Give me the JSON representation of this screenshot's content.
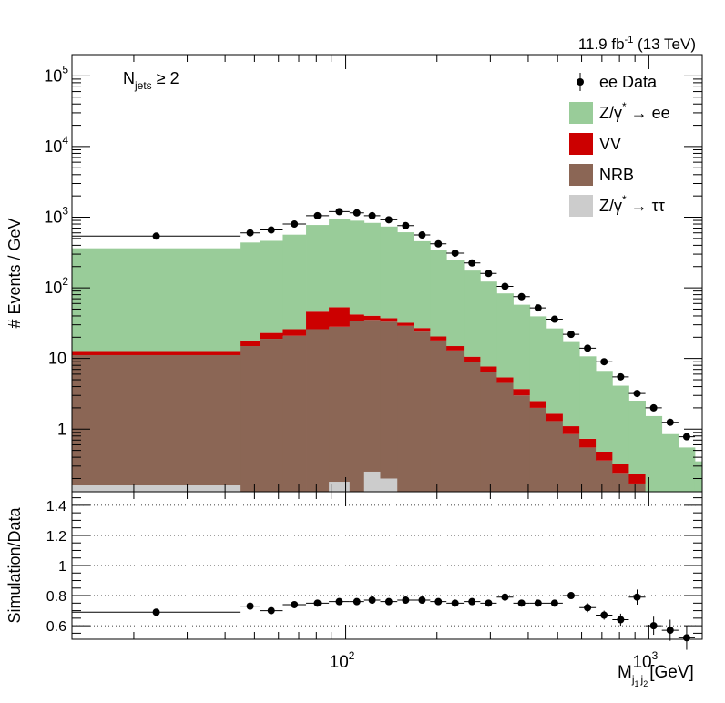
{
  "header": {
    "lumi_text": "11.9 fb",
    "lumi_exp": "-1",
    "energy_text": " (13 TeV)"
  },
  "annotation": {
    "label": "N",
    "sub": "jets",
    "rel": " ≥ 2"
  },
  "colors": {
    "zee": "#99cc99",
    "vv": "#cc0000",
    "nrb": "#8b6655",
    "ztt": "#cccccc",
    "data": "#000000"
  },
  "top_panel": {
    "ylabel": "# Events / GeV",
    "xlim": [
      12.5,
      1500
    ],
    "ylim": [
      0.13,
      200000
    ],
    "yticks": [
      {
        "v": 1,
        "label": "1"
      },
      {
        "v": 10,
        "label": "10"
      },
      {
        "v": 100,
        "base": "10",
        "exp": "2"
      },
      {
        "v": 1000,
        "base": "10",
        "exp": "3"
      },
      {
        "v": 10000,
        "base": "10",
        "exp": "4"
      },
      {
        "v": 100000,
        "base": "10",
        "exp": "5"
      }
    ]
  },
  "legend": [
    {
      "key": "data",
      "label": "ee Data",
      "style": "marker"
    },
    {
      "key": "zee",
      "label": "Z/γ",
      "sup": "*",
      "tail": " → ee",
      "style": "box"
    },
    {
      "key": "vv",
      "label": "VV",
      "style": "box"
    },
    {
      "key": "nrb",
      "label": "NRB",
      "style": "box"
    },
    {
      "key": "ztt",
      "label": "Z/γ",
      "sup": "*",
      "tail": " → ττ",
      "style": "box"
    }
  ],
  "ratio_panel": {
    "ylabel": "Simulation/Data",
    "ylim": [
      0.51,
      1.49
    ],
    "yticks": [
      {
        "v": 0.6,
        "label": "0.6"
      },
      {
        "v": 0.8,
        "label": "0.8"
      },
      {
        "v": 1,
        "label": "1"
      },
      {
        "v": 1.2,
        "label": "1.2"
      },
      {
        "v": 1.4,
        "label": "1.4"
      }
    ],
    "gridlines": [
      0.6,
      0.8,
      1.0,
      1.2,
      1.4
    ]
  },
  "xaxis": {
    "label": "M",
    "label_sub": "j",
    "label_sub2": "j",
    "label_sub2_sub": "1",
    "label_sub3_sub": "2",
    "unit": "[GeV]",
    "ticks": [
      {
        "v": 100,
        "base": "10",
        "exp": "2"
      },
      {
        "v": 1000,
        "base": "10",
        "exp": "3"
      }
    ]
  },
  "chart_data": {
    "type": "bar",
    "scale": "log-log",
    "bins": [
      {
        "lo": 12.5,
        "hi": 45,
        "nrb": 11,
        "vv": 1.6,
        "zee": 350,
        "ztt": 0.16,
        "data": 540,
        "ratio": 0.69,
        "ratio_err": 0.0
      },
      {
        "lo": 45,
        "hi": 52,
        "nrb": 15,
        "vv": 3,
        "zee": 420,
        "ztt": 0,
        "data": 600,
        "ratio": 0.73,
        "ratio_err": 0.01
      },
      {
        "lo": 52,
        "hi": 62,
        "nrb": 19,
        "vv": 4,
        "zee": 440,
        "ztt": 0,
        "data": 660,
        "ratio": 0.7,
        "ratio_err": 0.01
      },
      {
        "lo": 62,
        "hi": 74,
        "nrb": 21,
        "vv": 5,
        "zee": 540,
        "ztt": 0,
        "data": 800,
        "ratio": 0.74,
        "ratio_err": 0.01
      },
      {
        "lo": 74,
        "hi": 88,
        "nrb": 26,
        "vv": 20,
        "zee": 730,
        "ztt": 0,
        "data": 1050,
        "ratio": 0.75,
        "ratio_err": 0.01
      },
      {
        "lo": 88,
        "hi": 103,
        "nrb": 28,
        "vv": 25,
        "zee": 890,
        "ztt": 0.18,
        "data": 1200,
        "ratio": 0.76,
        "ratio_err": 0.01
      },
      {
        "lo": 103,
        "hi": 115,
        "nrb": 34,
        "vv": 8,
        "zee": 850,
        "ztt": 0,
        "data": 1150,
        "ratio": 0.76,
        "ratio_err": 0.01
      },
      {
        "lo": 115,
        "hi": 130,
        "nrb": 35,
        "vv": 5,
        "zee": 790,
        "ztt": 0.25,
        "data": 1050,
        "ratio": 0.77,
        "ratio_err": 0.01
      },
      {
        "lo": 130,
        "hi": 148,
        "nrb": 33,
        "vv": 4,
        "zee": 700,
        "ztt": 0.2,
        "data": 920,
        "ratio": 0.76,
        "ratio_err": 0.01
      },
      {
        "lo": 148,
        "hi": 168,
        "nrb": 29,
        "vv": 3,
        "zee": 580,
        "ztt": 0,
        "data": 760,
        "ratio": 0.77,
        "ratio_err": 0.01
      },
      {
        "lo": 168,
        "hi": 190,
        "nrb": 24,
        "vv": 3,
        "zee": 430,
        "ztt": 0,
        "data": 560,
        "ratio": 0.77,
        "ratio_err": 0.01
      },
      {
        "lo": 190,
        "hi": 215,
        "nrb": 18,
        "vv": 2.5,
        "zee": 320,
        "ztt": 0,
        "data": 420,
        "ratio": 0.76,
        "ratio_err": 0.01
      },
      {
        "lo": 215,
        "hi": 245,
        "nrb": 13,
        "vv": 2,
        "zee": 230,
        "ztt": 0,
        "data": 310,
        "ratio": 0.75,
        "ratio_err": 0.01
      },
      {
        "lo": 245,
        "hi": 278,
        "nrb": 9,
        "vv": 1.6,
        "zee": 165,
        "ztt": 0,
        "data": 225,
        "ratio": 0.76,
        "ratio_err": 0.01
      },
      {
        "lo": 278,
        "hi": 315,
        "nrb": 6.5,
        "vv": 1.2,
        "zee": 115,
        "ztt": 0,
        "data": 160,
        "ratio": 0.75,
        "ratio_err": 0.01
      },
      {
        "lo": 315,
        "hi": 357,
        "nrb": 4.5,
        "vv": 0.9,
        "zee": 78,
        "ztt": 0,
        "data": 105,
        "ratio": 0.79,
        "ratio_err": 0.01
      },
      {
        "lo": 357,
        "hi": 405,
        "nrb": 3,
        "vv": 0.7,
        "zee": 54,
        "ztt": 0,
        "data": 75,
        "ratio": 0.75,
        "ratio_err": 0.01
      },
      {
        "lo": 405,
        "hi": 459,
        "nrb": 2,
        "vv": 0.5,
        "zee": 37,
        "ztt": 0,
        "data": 52,
        "ratio": 0.75,
        "ratio_err": 0.01
      },
      {
        "lo": 459,
        "hi": 520,
        "nrb": 1.3,
        "vv": 0.35,
        "zee": 25,
        "ztt": 0,
        "data": 36,
        "ratio": 0.75,
        "ratio_err": 0.01
      },
      {
        "lo": 520,
        "hi": 590,
        "nrb": 0.85,
        "vv": 0.25,
        "zee": 16,
        "ztt": 0,
        "data": 22,
        "ratio": 0.8,
        "ratio_err": 0.02
      },
      {
        "lo": 590,
        "hi": 668,
        "nrb": 0.55,
        "vv": 0.18,
        "zee": 10,
        "ztt": 0,
        "data": 14,
        "ratio": 0.72,
        "ratio_err": 0.03
      },
      {
        "lo": 668,
        "hi": 758,
        "nrb": 0.36,
        "vv": 0.12,
        "zee": 6.2,
        "ztt": 0,
        "data": 9,
        "ratio": 0.67,
        "ratio_err": 0.03
      },
      {
        "lo": 758,
        "hi": 859,
        "nrb": 0.24,
        "vv": 0.08,
        "zee": 3.8,
        "ztt": 0,
        "data": 5.5,
        "ratio": 0.64,
        "ratio_err": 0.04
      },
      {
        "lo": 859,
        "hi": 974,
        "nrb": 0.17,
        "vv": 0.06,
        "zee": 2.3,
        "ztt": 0,
        "data": 3.2,
        "ratio": 0.79,
        "ratio_err": 0.05
      },
      {
        "lo": 974,
        "hi": 1104,
        "nrb": 0,
        "vv": 0.13,
        "zee": 1.4,
        "ztt": 0,
        "data": 2.0,
        "ratio": 0.6,
        "ratio_err": 0.06
      },
      {
        "lo": 1104,
        "hi": 1252,
        "nrb": 0,
        "vv": 0,
        "zee": 0.85,
        "ztt": 0,
        "data": 1.25,
        "ratio": 0.57,
        "ratio_err": 0.07
      },
      {
        "lo": 1252,
        "hi": 1419,
        "nrb": 0,
        "vv": 0,
        "zee": 0.55,
        "ztt": 0,
        "data": 0.78,
        "ratio": 0.52,
        "ratio_err": 0.08
      },
      {
        "lo": 1419,
        "hi": 1609,
        "nrb": 0,
        "vv": 0,
        "zee": 0.35,
        "ztt": 0,
        "data": 0.5,
        "ratio": 0.65,
        "ratio_err": 0.09
      },
      {
        "lo": 1609,
        "hi": 1824,
        "nrb": 0,
        "vv": 0,
        "zee": 0.22,
        "ztt": 0,
        "data": 0.35,
        "ratio": 0.63,
        "ratio_err": 0.1
      }
    ]
  }
}
